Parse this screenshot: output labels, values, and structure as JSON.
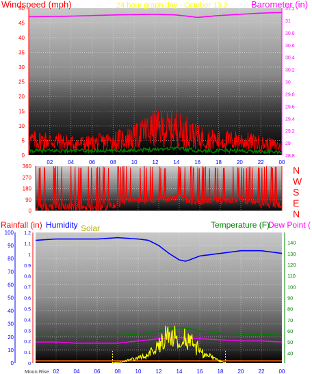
{
  "header": {
    "left_title": "Windspeed (mph)",
    "center_title": "24 hour graph day - October 13 2",
    "right_title": "Barometer (in)"
  },
  "colors": {
    "wind": "#ff0000",
    "gust": "#ff0000",
    "avg": "#008000",
    "dir": "#ff0000",
    "baro": "#ff00ff",
    "humidity": "#0000ff",
    "temperature": "#008000",
    "dewpoint": "#ff00ff",
    "solar": "#ffff00",
    "rain": "#ff6600"
  },
  "chart_data": [
    {
      "type": "line",
      "title": "Windspeed (mph)",
      "subtitle": "24 hour graph day - October 13 2",
      "x_ticks": [
        "02",
        "04",
        "06",
        "08",
        "10",
        "12",
        "14",
        "16",
        "18",
        "20",
        "22",
        "00"
      ],
      "y_left": {
        "label": "Windspeed (mph)",
        "ticks": [
          0,
          5,
          10,
          15,
          20,
          25,
          30,
          35,
          40,
          45,
          50
        ],
        "lim": [
          0,
          50
        ]
      },
      "y_right": {
        "label": "Barometer (in)",
        "ticks": [
          28.8,
          29,
          29.2,
          29.4,
          29.6,
          29.8,
          30,
          30.2,
          30.4,
          30.6,
          30.8,
          31,
          31.2
        ],
        "lim": [
          28.8,
          31.2
        ]
      },
      "grid": true,
      "series": [
        {
          "axis": "right",
          "hours": [
            0,
            4,
            8,
            12,
            14,
            16,
            18,
            20,
            22,
            24
          ],
          "values": [
            31.06,
            31.07,
            31.09,
            31.1,
            31.09,
            31.05,
            31.08,
            31.1,
            31.12,
            31.13
          ]
        },
        {
          "axis": "left",
          "hours": [
            0,
            2,
            4,
            6,
            8,
            10,
            11,
            12,
            13,
            14,
            15,
            16,
            18,
            20,
            22,
            24
          ],
          "values": [
            5,
            5,
            4,
            4,
            5,
            6,
            8,
            9,
            9,
            9,
            8,
            6,
            5,
            5,
            4,
            3
          ]
        },
        {
          "axis": "left",
          "hours": [
            0,
            4,
            8,
            12,
            14,
            16,
            20,
            24
          ],
          "values": [
            1.5,
            1.5,
            1.5,
            2,
            2.5,
            1.5,
            1.5,
            1
          ]
        }
      ]
    },
    {
      "type": "line",
      "title": "Wind direction",
      "x_ticks": [
        "02",
        "04",
        "06",
        "08",
        "10",
        "12",
        "14",
        "16",
        "18",
        "20",
        "22",
        "00"
      ],
      "y_left": {
        "ticks": [
          0,
          90,
          180,
          270,
          360
        ],
        "lim": [
          0,
          360
        ]
      },
      "compass_labels": [
        "N",
        "W",
        "S",
        "E",
        "N"
      ],
      "grid": true,
      "series": [
        {
          "hours": [
            0,
            2,
            4,
            6,
            8,
            9,
            10,
            12,
            14,
            15,
            16,
            18,
            20,
            22,
            24
          ],
          "values": [
            20,
            40,
            30,
            25,
            45,
            90,
            70,
            90,
            110,
            80,
            70,
            80,
            90,
            60,
            40
          ]
        }
      ]
    },
    {
      "type": "line",
      "legend": [
        "Rainfall (in)",
        "Humidity",
        "Solar",
        "Temperature (F)",
        "Dew Point ("
      ],
      "moon_label": "Moon Rise",
      "x_ticks": [
        "02",
        "04",
        "06",
        "08",
        "10",
        "12",
        "14",
        "16",
        "18",
        "20",
        "22",
        "00"
      ],
      "y_rain": {
        "label": "Rainfall (in)",
        "ticks": [
          0,
          0.1,
          0.2,
          0.3,
          0.4,
          0.5,
          0.6,
          0.7,
          0.8,
          0.9,
          1,
          1.1,
          1.2
        ],
        "lim": [
          0,
          1.2
        ]
      },
      "y_humidity": {
        "label": "Humidity",
        "ticks": [
          0,
          10,
          20,
          30,
          40,
          50,
          60,
          70,
          80,
          90,
          100
        ],
        "lim": [
          0,
          100
        ]
      },
      "y_temperature": {
        "label": "Temperature (F)",
        "ticks": [
          40,
          50,
          60,
          70,
          80,
          90,
          100,
          110,
          120,
          130,
          140
        ],
        "lim": [
          31,
          149
        ]
      },
      "grid": true,
      "series": [
        {
          "name": "Humidity",
          "axis": "humidity",
          "hours": [
            0,
            2,
            4,
            6,
            8,
            10,
            11,
            12,
            13,
            14,
            14.6,
            15,
            16,
            17,
            18,
            20,
            22,
            23,
            24
          ],
          "values": [
            94,
            95,
            95,
            95,
            96,
            95,
            94,
            90,
            84,
            79,
            78,
            79,
            82,
            83,
            84,
            86,
            86,
            85,
            84
          ]
        },
        {
          "name": "Temperature (F)",
          "axis": "temperature",
          "hours": [
            0,
            2,
            4,
            6,
            8,
            10,
            12,
            13,
            14,
            15,
            16,
            18,
            20,
            22,
            24
          ],
          "values": [
            56,
            56,
            56,
            56,
            56,
            57,
            60,
            62,
            63,
            62,
            60,
            58,
            57,
            57,
            56
          ]
        },
        {
          "name": "Dew Point (",
          "axis": "temperature",
          "hours": [
            0,
            2,
            4,
            6,
            8,
            10,
            12,
            14,
            16,
            18,
            20,
            22,
            24
          ],
          "values": [
            50,
            50,
            49,
            49,
            49,
            51,
            53,
            54,
            53,
            52,
            51,
            51,
            50
          ]
        },
        {
          "name": "Solar",
          "axis": "humidity",
          "hours": [
            7.5,
            8.5,
            9.5,
            10.5,
            11.5,
            12.2,
            12.8,
            13.2,
            13.6,
            14,
            14.4,
            14.7,
            15.1,
            15.5,
            15.9,
            16.4,
            17,
            17.8,
            18.5
          ],
          "values": [
            0,
            1,
            3,
            5,
            10,
            15,
            22,
            18,
            25,
            12,
            22,
            14,
            20,
            10,
            12,
            6,
            5,
            2,
            0
          ]
        },
        {
          "name": "Rainfall (in)",
          "axis": "rain",
          "hours": [
            0,
            24
          ],
          "values": [
            0.02,
            0.02
          ]
        }
      ]
    }
  ],
  "direction_labels": [
    "N",
    "W",
    "S",
    "E",
    "N"
  ]
}
